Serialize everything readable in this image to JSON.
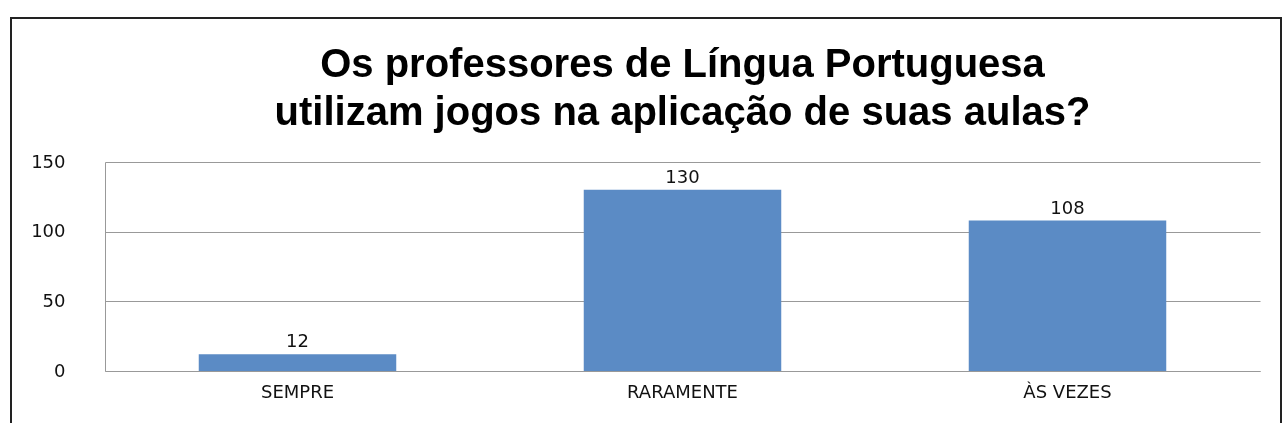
{
  "chart_data": {
    "type": "bar",
    "title": [
      "Os professores de Língua Portuguesa",
      "utilizam jogos na aplicação de suas aulas?"
    ],
    "categories": [
      "SEMPRE",
      "RARAMENTE",
      "ÀS VEZES"
    ],
    "values": [
      12,
      130,
      108
    ],
    "color": "#5b8bc5",
    "ylim": [
      0,
      150
    ],
    "yticks": [
      0,
      50,
      100,
      150
    ],
    "grid": "y",
    "data_labels": true
  }
}
